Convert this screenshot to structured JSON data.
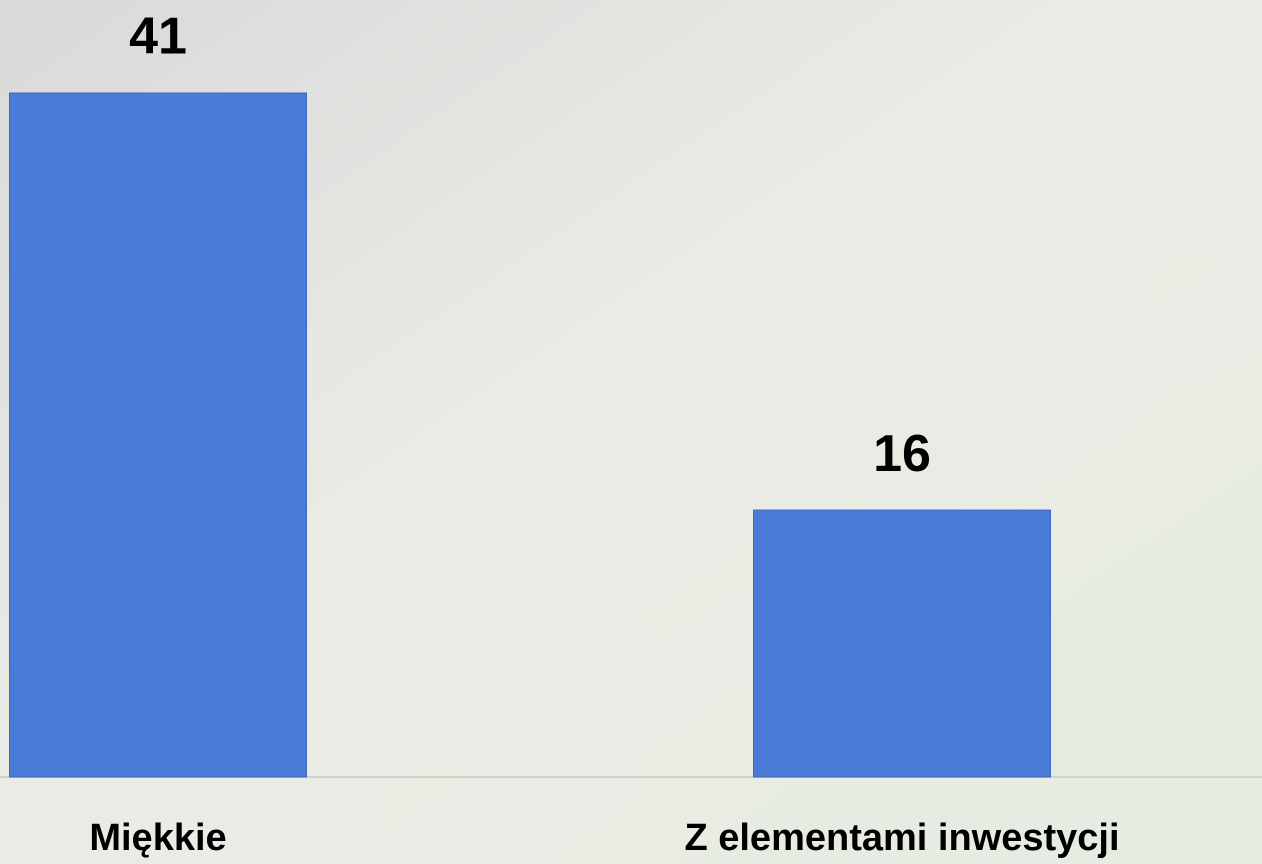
{
  "chart_data": {
    "type": "bar",
    "categories": [
      "Miękkie",
      "Z elementami inwestycji"
    ],
    "values": [
      41,
      16
    ],
    "color": "#4a7bd6"
  }
}
